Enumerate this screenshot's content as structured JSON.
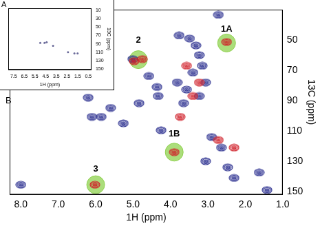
{
  "chart_data": [
    {
      "type": "scatter",
      "title": "B",
      "x_label": "1H (ppm)",
      "y_label": "13C (ppm)",
      "xlim": [
        8.3,
        1.0
      ],
      "xticks": [
        {
          "value": 8,
          "label": "8.0"
        },
        {
          "value": 7,
          "label": "7.0"
        },
        {
          "value": 6,
          "label": "6.0"
        },
        {
          "value": 5,
          "label": "5.0"
        },
        {
          "value": 4,
          "label": "4.0"
        },
        {
          "value": 3,
          "label": "3.0"
        },
        {
          "value": 2,
          "label": "2.0"
        },
        {
          "value": 1,
          "label": "1.0"
        }
      ],
      "ylim": [
        152,
        30
      ],
      "yticks": [
        50,
        70,
        90,
        110,
        130,
        150
      ],
      "grid": false,
      "series": [
        {
          "color": "#8fd14f",
          "marker": "circle",
          "x": [
            2.5,
            4.86,
            3.9,
            6.0
          ],
          "values": [
            52,
            63,
            124,
            145.5
          ]
        },
        {
          "color": "#2b2f8f",
          "marker": "contour",
          "x": [
            2.72,
            3.49,
            3.77,
            3.32,
            3.23,
            3.4,
            3.57,
            3.23,
            3.65,
            3.82,
            3.06,
            3.15,
            5.01,
            4.58,
            4.36,
            4.84,
            4.33,
            6.2,
            6.1,
            5.85,
            5.6,
            5.26,
            4.25,
            2.9,
            2.64,
            3.06,
            2.47,
            2.3,
            1.63,
            1.42,
            8.0
          ],
          "values": [
            33.4,
            49,
            47,
            53.6,
            60,
            71.5,
            82.7,
            87,
            91.7,
            78,
            78,
            67,
            62.6,
            73.8,
            81,
            91.7,
            87,
            88,
            100.7,
            100.7,
            94.8,
            105,
            109.6,
            114,
            121,
            130,
            134,
            141,
            137.4,
            149,
            145.5
          ]
        },
        {
          "color": "#d0202a",
          "marker": "contour",
          "x": [
            2.5,
            4.97,
            4.75,
            3.9,
            6.02,
            3.57,
            3.23,
            3.74,
            2.72,
            2.3,
            3.4
          ],
          "values": [
            51.3,
            64,
            62.6,
            124,
            145.5,
            67,
            78,
            100.7,
            116,
            121,
            87
          ]
        }
      ],
      "annotations": [
        {
          "text": "1A",
          "x": 2.5,
          "y": 43
        },
        {
          "text": "2",
          "x": 4.86,
          "y": 50
        },
        {
          "text": "1B",
          "x": 3.9,
          "y": 112
        },
        {
          "text": "3",
          "x": 6.0,
          "y": 135
        }
      ]
    },
    {
      "type": "scatter",
      "title": "A",
      "x_label": "1H (ppm)",
      "y_label": "13C (ppm)",
      "xlim": [
        8.0,
        0.2
      ],
      "xticks": [
        7.5,
        6.5,
        5.5,
        4.5,
        3.5,
        2.5,
        1.5,
        0.5
      ],
      "ylim": [
        152,
        5
      ],
      "yticks": [
        10,
        30,
        50,
        70,
        90,
        110,
        130,
        150
      ],
      "grid": false,
      "series": [
        {
          "color": "#6b6b9a",
          "marker": "dot",
          "x": [
            5.0,
            4.6,
            4.4,
            3.8,
            2.4,
            1.8,
            1.5
          ],
          "values": [
            88,
            88,
            86,
            95,
            110,
            113,
            113
          ]
        }
      ]
    }
  ]
}
